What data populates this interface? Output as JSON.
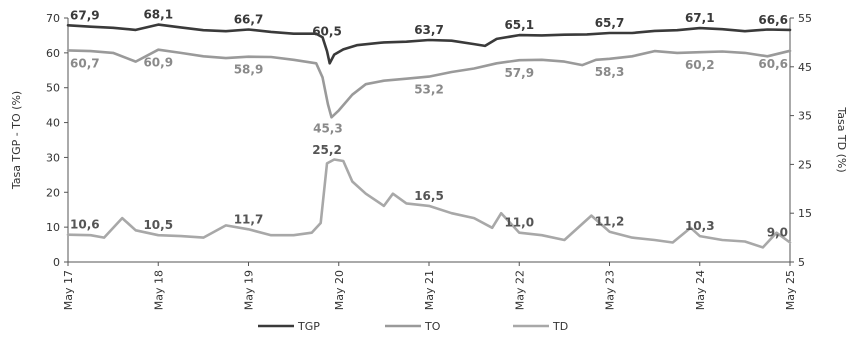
{
  "chart_data": {
    "type": "line",
    "left_axis": {
      "label": "Tasa TGP - TO (%)",
      "ylim": [
        0,
        70
      ],
      "ticks": [
        0,
        10,
        20,
        30,
        40,
        50,
        60,
        70
      ]
    },
    "right_axis": {
      "label": "Tasa TD (%)",
      "ylim": [
        5,
        55
      ],
      "ticks": [
        5,
        15,
        25,
        35,
        45,
        55
      ]
    },
    "x_ticks": [
      "May 17",
      "May 18",
      "May 19",
      "May 20",
      "May 21",
      "May 22",
      "May 23",
      "May 24",
      "May 25"
    ],
    "grid": false,
    "legend_position": "bottom",
    "series": [
      {
        "name": "TGP",
        "axis": "left",
        "color": "#3a3a3a",
        "points": [
          [
            0,
            67.9
          ],
          [
            0.25,
            67.5
          ],
          [
            0.5,
            67.2
          ],
          [
            0.75,
            66.6
          ],
          [
            1,
            68.1
          ],
          [
            1.25,
            67.3
          ],
          [
            1.5,
            66.5
          ],
          [
            1.75,
            66.2
          ],
          [
            2,
            66.7
          ],
          [
            2.25,
            66.0
          ],
          [
            2.5,
            65.5
          ],
          [
            2.75,
            65.5
          ],
          [
            2.82,
            64.5
          ],
          [
            2.87,
            60.5
          ],
          [
            2.9,
            57.0
          ],
          [
            2.95,
            59.5
          ],
          [
            3.05,
            61.0
          ],
          [
            3.2,
            62.2
          ],
          [
            3.5,
            63.0
          ],
          [
            3.75,
            63.2
          ],
          [
            4,
            63.7
          ],
          [
            4.25,
            63.5
          ],
          [
            4.5,
            62.5
          ],
          [
            4.62,
            62.0
          ],
          [
            4.75,
            64.0
          ],
          [
            5,
            65.1
          ],
          [
            5.25,
            65.0
          ],
          [
            5.5,
            65.2
          ],
          [
            5.75,
            65.3
          ],
          [
            6,
            65.7
          ],
          [
            6.25,
            65.7
          ],
          [
            6.5,
            66.3
          ],
          [
            6.75,
            66.5
          ],
          [
            7,
            67.1
          ],
          [
            7.25,
            66.8
          ],
          [
            7.5,
            66.2
          ],
          [
            7.75,
            66.7
          ],
          [
            8,
            66.6
          ]
        ]
      },
      {
        "name": "TO",
        "axis": "left",
        "color": "#9a9a9a",
        "points": [
          [
            0,
            60.7
          ],
          [
            0.25,
            60.5
          ],
          [
            0.5,
            60.0
          ],
          [
            0.75,
            57.5
          ],
          [
            1,
            60.9
          ],
          [
            1.25,
            60.0
          ],
          [
            1.5,
            59.0
          ],
          [
            1.75,
            58.5
          ],
          [
            2,
            58.9
          ],
          [
            2.25,
            58.8
          ],
          [
            2.5,
            58.0
          ],
          [
            2.75,
            57.0
          ],
          [
            2.82,
            53.0
          ],
          [
            2.88,
            45.3
          ],
          [
            2.92,
            41.5
          ],
          [
            3.0,
            43.5
          ],
          [
            3.15,
            48.0
          ],
          [
            3.3,
            51.0
          ],
          [
            3.5,
            52.0
          ],
          [
            3.75,
            52.6
          ],
          [
            4,
            53.2
          ],
          [
            4.25,
            54.5
          ],
          [
            4.5,
            55.5
          ],
          [
            4.75,
            57.0
          ],
          [
            5,
            57.9
          ],
          [
            5.25,
            58.0
          ],
          [
            5.5,
            57.5
          ],
          [
            5.7,
            56.5
          ],
          [
            5.85,
            58.0
          ],
          [
            6,
            58.3
          ],
          [
            6.25,
            59.0
          ],
          [
            6.5,
            60.5
          ],
          [
            6.75,
            60.0
          ],
          [
            7,
            60.2
          ],
          [
            7.25,
            60.4
          ],
          [
            7.5,
            60.0
          ],
          [
            7.75,
            59.0
          ],
          [
            8,
            60.6
          ]
        ]
      },
      {
        "name": "TD",
        "axis": "right",
        "color": "#a8a8a8",
        "points": [
          [
            0,
            10.6
          ],
          [
            0.25,
            10.5
          ],
          [
            0.4,
            10.0
          ],
          [
            0.6,
            14.0
          ],
          [
            0.75,
            11.5
          ],
          [
            1,
            10.5
          ],
          [
            1.25,
            10.3
          ],
          [
            1.5,
            10.0
          ],
          [
            1.75,
            12.5
          ],
          [
            2,
            11.7
          ],
          [
            2.25,
            10.5
          ],
          [
            2.5,
            10.5
          ],
          [
            2.7,
            11.0
          ],
          [
            2.8,
            13.0
          ],
          [
            2.87,
            25.2
          ],
          [
            2.95,
            26.0
          ],
          [
            3.05,
            25.7
          ],
          [
            3.15,
            21.5
          ],
          [
            3.3,
            19.0
          ],
          [
            3.5,
            16.5
          ],
          [
            3.6,
            19.0
          ],
          [
            3.75,
            17.0
          ],
          [
            4,
            16.5
          ],
          [
            4.25,
            15.0
          ],
          [
            4.5,
            14.0
          ],
          [
            4.7,
            12.0
          ],
          [
            4.8,
            15.0
          ],
          [
            5,
            11.0
          ],
          [
            5.25,
            10.5
          ],
          [
            5.5,
            9.5
          ],
          [
            5.8,
            14.5
          ],
          [
            6,
            11.2
          ],
          [
            6.25,
            10.0
          ],
          [
            6.5,
            9.5
          ],
          [
            6.7,
            9.0
          ],
          [
            6.9,
            12.0
          ],
          [
            7,
            10.3
          ],
          [
            7.25,
            9.5
          ],
          [
            7.5,
            9.2
          ],
          [
            7.7,
            8.0
          ],
          [
            7.85,
            11.0
          ],
          [
            8,
            9.0
          ]
        ]
      }
    ],
    "annotations": [
      {
        "series": "TGP",
        "x": 0,
        "text": "67,9"
      },
      {
        "series": "TGP",
        "x": 1,
        "text": "68,1"
      },
      {
        "series": "TGP",
        "x": 2,
        "text": "66,7"
      },
      {
        "series": "TGP",
        "x": 2.87,
        "text": "60,5"
      },
      {
        "series": "TGP",
        "x": 4,
        "text": "63,7"
      },
      {
        "series": "TGP",
        "x": 5,
        "text": "65,1"
      },
      {
        "series": "TGP",
        "x": 6,
        "text": "65,7"
      },
      {
        "series": "TGP",
        "x": 7,
        "text": "67,1"
      },
      {
        "series": "TGP",
        "x": 8,
        "text": "66,6"
      },
      {
        "series": "TO",
        "x": 0,
        "text": "60,7"
      },
      {
        "series": "TO",
        "x": 1,
        "text": "60,9"
      },
      {
        "series": "TO",
        "x": 2,
        "text": "58,9"
      },
      {
        "series": "TO",
        "x": 2.88,
        "text": "45,3"
      },
      {
        "series": "TO",
        "x": 4,
        "text": "53,2"
      },
      {
        "series": "TO",
        "x": 5,
        "text": "57,9"
      },
      {
        "series": "TO",
        "x": 6,
        "text": "58,3"
      },
      {
        "series": "TO",
        "x": 7,
        "text": "60,2"
      },
      {
        "series": "TO",
        "x": 8,
        "text": "60,6"
      },
      {
        "series": "TD",
        "x": 0,
        "text": "10,6"
      },
      {
        "series": "TD",
        "x": 1,
        "text": "10,5"
      },
      {
        "series": "TD",
        "x": 2,
        "text": "11,7"
      },
      {
        "series": "TD",
        "x": 2.87,
        "text": "25,2"
      },
      {
        "series": "TD",
        "x": 4,
        "text": "16,5"
      },
      {
        "series": "TD",
        "x": 5,
        "text": "11,0"
      },
      {
        "series": "TD",
        "x": 6,
        "text": "11,2"
      },
      {
        "series": "TD",
        "x": 7,
        "text": "10,3"
      },
      {
        "series": "TD",
        "x": 8,
        "text": "9,0"
      }
    ]
  }
}
